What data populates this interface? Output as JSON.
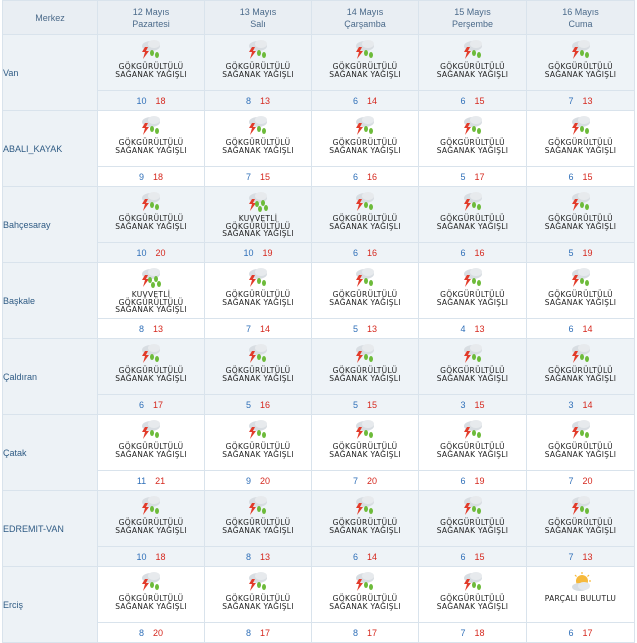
{
  "header": {
    "merkez_label": "Merkez",
    "days": [
      {
        "date": "12 Mayıs",
        "weekday": "Pazartesi"
      },
      {
        "date": "13 Mayıs",
        "weekday": "Salı"
      },
      {
        "date": "14 Mayıs",
        "weekday": "Çarşamba"
      },
      {
        "date": "15 Mayıs",
        "weekday": "Perşembe"
      },
      {
        "date": "16 Mayıs",
        "weekday": "Cuma"
      }
    ]
  },
  "colors": {
    "min_temp": "#2f6fb8",
    "max_temp": "#d5281e",
    "location": "#2f5b84",
    "header_text": "#4b6a8a"
  },
  "rows": [
    {
      "name": "Van",
      "cells": [
        {
          "icon": "thunder-rain-icon",
          "desc": [
            "GÖKGÜRÜLTÜLÜ",
            "SAĞANAK YAĞIŞLI"
          ],
          "min": "10",
          "max": "18"
        },
        {
          "icon": "thunder-rain-icon",
          "desc": [
            "GÖKGÜRÜLTÜLÜ",
            "SAĞANAK YAĞIŞLI"
          ],
          "min": "8",
          "max": "13"
        },
        {
          "icon": "thunder-rain-icon",
          "desc": [
            "GÖKGÜRÜLTÜLÜ",
            "SAĞANAK YAĞIŞLI"
          ],
          "min": "6",
          "max": "14"
        },
        {
          "icon": "thunder-rain-icon",
          "desc": [
            "GÖKGÜRÜLTÜLÜ",
            "SAĞANAK YAĞIŞLI"
          ],
          "min": "6",
          "max": "15"
        },
        {
          "icon": "thunder-rain-icon",
          "desc": [
            "GÖKGÜRÜLTÜLÜ",
            "SAĞANAK YAĞIŞLI"
          ],
          "min": "7",
          "max": "13"
        }
      ]
    },
    {
      "name": "ABALI_KAYAK",
      "cells": [
        {
          "icon": "thunder-rain-icon",
          "desc": [
            "GÖKGÜRÜLTÜLÜ",
            "SAĞANAK YAĞIŞLI"
          ],
          "min": "9",
          "max": "18"
        },
        {
          "icon": "thunder-rain-icon",
          "desc": [
            "GÖKGÜRÜLTÜLÜ",
            "SAĞANAK YAĞIŞLI"
          ],
          "min": "7",
          "max": "15"
        },
        {
          "icon": "thunder-rain-icon",
          "desc": [
            "GÖKGÜRÜLTÜLÜ",
            "SAĞANAK YAĞIŞLI"
          ],
          "min": "6",
          "max": "16"
        },
        {
          "icon": "thunder-rain-icon",
          "desc": [
            "GÖKGÜRÜLTÜLÜ",
            "SAĞANAK YAĞIŞLI"
          ],
          "min": "5",
          "max": "17"
        },
        {
          "icon": "thunder-rain-icon",
          "desc": [
            "GÖKGÜRÜLTÜLÜ",
            "SAĞANAK YAĞIŞLI"
          ],
          "min": "6",
          "max": "15"
        }
      ]
    },
    {
      "name": "Bahçesaray",
      "cells": [
        {
          "icon": "thunder-rain-icon",
          "desc": [
            "GÖKGÜRÜLTÜLÜ",
            "SAĞANAK YAĞIŞLI"
          ],
          "min": "10",
          "max": "20"
        },
        {
          "icon": "heavy-thunder-rain-icon",
          "desc": [
            "KUVVETLİ",
            "GÖKGÜRÜLTÜLÜ",
            "SAĞANAK YAĞIŞLI"
          ],
          "min": "10",
          "max": "19"
        },
        {
          "icon": "thunder-rain-icon",
          "desc": [
            "GÖKGÜRÜLTÜLÜ",
            "SAĞANAK YAĞIŞLI"
          ],
          "min": "6",
          "max": "16"
        },
        {
          "icon": "thunder-rain-icon",
          "desc": [
            "GÖKGÜRÜLTÜLÜ",
            "SAĞANAK YAĞIŞLI"
          ],
          "min": "6",
          "max": "16"
        },
        {
          "icon": "thunder-rain-icon",
          "desc": [
            "GÖKGÜRÜLTÜLÜ",
            "SAĞANAK YAĞIŞLI"
          ],
          "min": "5",
          "max": "19"
        }
      ]
    },
    {
      "name": "Başkale",
      "cells": [
        {
          "icon": "heavy-thunder-rain-icon",
          "desc": [
            "KUVVETLİ",
            "GÖKGÜRÜLTÜLÜ",
            "SAĞANAK YAĞIŞLI"
          ],
          "min": "8",
          "max": "13"
        },
        {
          "icon": "thunder-rain-icon",
          "desc": [
            "GÖKGÜRÜLTÜLÜ",
            "SAĞANAK YAĞIŞLI"
          ],
          "min": "7",
          "max": "14"
        },
        {
          "icon": "thunder-rain-icon",
          "desc": [
            "GÖKGÜRÜLTÜLÜ",
            "SAĞANAK YAĞIŞLI"
          ],
          "min": "5",
          "max": "13"
        },
        {
          "icon": "thunder-rain-icon",
          "desc": [
            "GÖKGÜRÜLTÜLÜ",
            "SAĞANAK YAĞIŞLI"
          ],
          "min": "4",
          "max": "13"
        },
        {
          "icon": "thunder-rain-icon",
          "desc": [
            "GÖKGÜRÜLTÜLÜ",
            "SAĞANAK YAĞIŞLI"
          ],
          "min": "6",
          "max": "14"
        }
      ]
    },
    {
      "name": "Çaldıran",
      "cells": [
        {
          "icon": "thunder-rain-icon",
          "desc": [
            "GÖKGÜRÜLTÜLÜ",
            "SAĞANAK YAĞIŞLI"
          ],
          "min": "6",
          "max": "17"
        },
        {
          "icon": "thunder-rain-icon",
          "desc": [
            "GÖKGÜRÜLTÜLÜ",
            "SAĞANAK YAĞIŞLI"
          ],
          "min": "5",
          "max": "16"
        },
        {
          "icon": "thunder-rain-icon",
          "desc": [
            "GÖKGÜRÜLTÜLÜ",
            "SAĞANAK YAĞIŞLI"
          ],
          "min": "5",
          "max": "15"
        },
        {
          "icon": "thunder-rain-icon",
          "desc": [
            "GÖKGÜRÜLTÜLÜ",
            "SAĞANAK YAĞIŞLI"
          ],
          "min": "3",
          "max": "15"
        },
        {
          "icon": "thunder-rain-icon",
          "desc": [
            "GÖKGÜRÜLTÜLÜ",
            "SAĞANAK YAĞIŞLI"
          ],
          "min": "3",
          "max": "14"
        }
      ]
    },
    {
      "name": "Çatak",
      "cells": [
        {
          "icon": "thunder-rain-icon",
          "desc": [
            "GÖKGÜRÜLTÜLÜ",
            "SAĞANAK YAĞIŞLI"
          ],
          "min": "11",
          "max": "21"
        },
        {
          "icon": "thunder-rain-icon",
          "desc": [
            "GÖKGÜRÜLTÜLÜ",
            "SAĞANAK YAĞIŞLI"
          ],
          "min": "9",
          "max": "20"
        },
        {
          "icon": "thunder-rain-icon",
          "desc": [
            "GÖKGÜRÜLTÜLÜ",
            "SAĞANAK YAĞIŞLI"
          ],
          "min": "7",
          "max": "20"
        },
        {
          "icon": "thunder-rain-icon",
          "desc": [
            "GÖKGÜRÜLTÜLÜ",
            "SAĞANAK YAĞIŞLI"
          ],
          "min": "6",
          "max": "19"
        },
        {
          "icon": "thunder-rain-icon",
          "desc": [
            "GÖKGÜRÜLTÜLÜ",
            "SAĞANAK YAĞIŞLI"
          ],
          "min": "7",
          "max": "20"
        }
      ]
    },
    {
      "name": "EDREMIT-VAN",
      "cells": [
        {
          "icon": "thunder-rain-icon",
          "desc": [
            "GÖKGÜRÜLTÜLÜ",
            "SAĞANAK YAĞIŞLI"
          ],
          "min": "10",
          "max": "18"
        },
        {
          "icon": "thunder-rain-icon",
          "desc": [
            "GÖKGÜRÜLTÜLÜ",
            "SAĞANAK YAĞIŞLI"
          ],
          "min": "8",
          "max": "13"
        },
        {
          "icon": "thunder-rain-icon",
          "desc": [
            "GÖKGÜRÜLTÜLÜ",
            "SAĞANAK YAĞIŞLI"
          ],
          "min": "6",
          "max": "14"
        },
        {
          "icon": "thunder-rain-icon",
          "desc": [
            "GÖKGÜRÜLTÜLÜ",
            "SAĞANAK YAĞIŞLI"
          ],
          "min": "6",
          "max": "15"
        },
        {
          "icon": "thunder-rain-icon",
          "desc": [
            "GÖKGÜRÜLTÜLÜ",
            "SAĞANAK YAĞIŞLI"
          ],
          "min": "7",
          "max": "13"
        }
      ]
    },
    {
      "name": "Erciş",
      "cells": [
        {
          "icon": "thunder-rain-icon",
          "desc": [
            "GÖKGÜRÜLTÜLÜ",
            "SAĞANAK YAĞIŞLI"
          ],
          "min": "8",
          "max": "20"
        },
        {
          "icon": "thunder-rain-icon",
          "desc": [
            "GÖKGÜRÜLTÜLÜ",
            "SAĞANAK YAĞIŞLI"
          ],
          "min": "8",
          "max": "17"
        },
        {
          "icon": "thunder-rain-icon",
          "desc": [
            "GÖKGÜRÜLTÜLÜ",
            "SAĞANAK YAĞIŞLI"
          ],
          "min": "8",
          "max": "17"
        },
        {
          "icon": "thunder-rain-icon",
          "desc": [
            "GÖKGÜRÜLTÜLÜ",
            "SAĞANAK YAĞIŞLI"
          ],
          "min": "7",
          "max": "18"
        },
        {
          "icon": "partly-cloudy-icon",
          "desc": [
            "PARÇALI BULUTLU"
          ],
          "min": "6",
          "max": "17"
        }
      ]
    }
  ]
}
